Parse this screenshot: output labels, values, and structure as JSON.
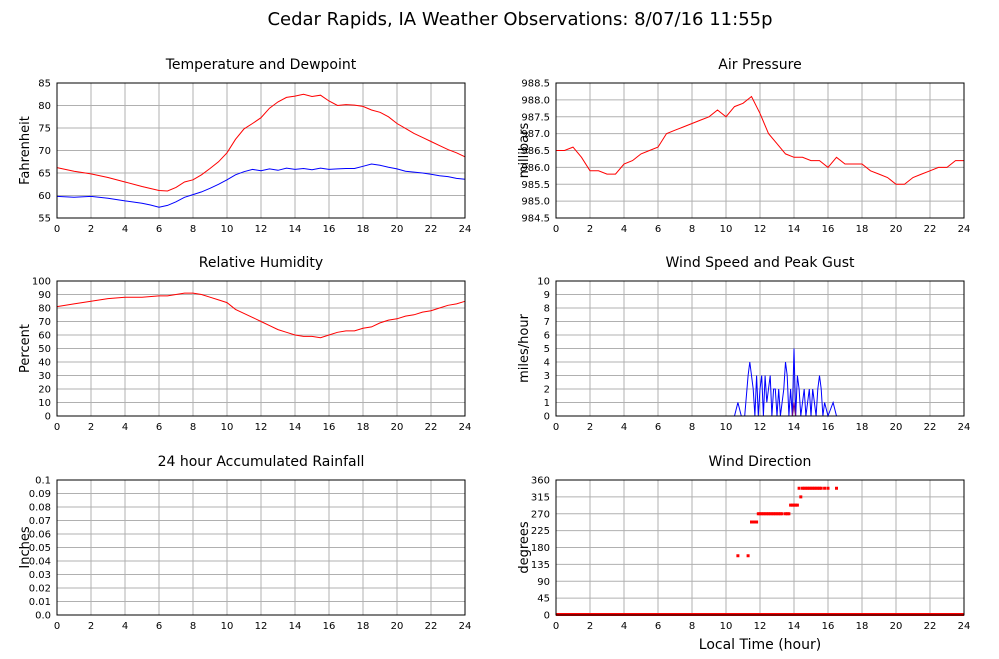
{
  "title": "Cedar Rapids, IA Weather Observations: 8/07/16 11:55p",
  "xlabel": "Local Time (hour)",
  "colors": {
    "red": "#ff0000",
    "blue": "#0000ff",
    "purple": "#800080",
    "grid": "#b0b0b0"
  },
  "chart_data": [
    {
      "id": "temp",
      "type": "line",
      "title": "Temperature and Dewpoint",
      "ylabel": "Fahrenheit",
      "xlim": [
        0,
        24
      ],
      "ylim": [
        55,
        85
      ],
      "xticks": [
        0,
        2,
        4,
        6,
        8,
        10,
        12,
        14,
        16,
        18,
        20,
        22,
        24
      ],
      "yticks": [
        "55",
        "60",
        "65",
        "70",
        "75",
        "80",
        "85"
      ],
      "series": [
        {
          "color": "#ff0000",
          "x": [
            0,
            1,
            2,
            3,
            4,
            5,
            6,
            6.5,
            7,
            7.5,
            8,
            8.5,
            9,
            9.5,
            10,
            10.5,
            11,
            11.5,
            12,
            12.5,
            13,
            13.5,
            14,
            14.5,
            15,
            15.5,
            16,
            16.5,
            17,
            17.5,
            18,
            18.5,
            19,
            19.5,
            20,
            20.5,
            21,
            21.5,
            22,
            22.5,
            23,
            23.5,
            24
          ],
          "y": [
            66.2,
            65.4,
            64.8,
            64.0,
            63.0,
            62.0,
            61.1,
            61.0,
            61.8,
            63.0,
            63.5,
            64.6,
            66.0,
            67.5,
            69.5,
            72.5,
            74.8,
            76.0,
            77.3,
            79.4,
            80.8,
            81.8,
            82.1,
            82.5,
            82.0,
            82.3,
            81.0,
            80.0,
            80.2,
            80.1,
            79.8,
            79.0,
            78.5,
            77.5,
            76.0,
            74.9,
            73.8,
            72.9,
            72.0,
            71.1,
            70.2,
            69.5,
            68.6
          ]
        },
        {
          "color": "#0000ff",
          "x": [
            0,
            1,
            2,
            3,
            4,
            5,
            5.5,
            6,
            6.5,
            7,
            7.5,
            8,
            8.5,
            9,
            9.5,
            10,
            10.5,
            11,
            11.5,
            12,
            12.5,
            13,
            13.5,
            14,
            14.5,
            15,
            15.5,
            16,
            16.5,
            17,
            17.5,
            18,
            18.5,
            19,
            19.5,
            20,
            20.5,
            21,
            21.5,
            22,
            22.5,
            23,
            23.5,
            24
          ],
          "y": [
            59.8,
            59.6,
            59.8,
            59.4,
            58.8,
            58.3,
            57.9,
            57.4,
            57.8,
            58.6,
            59.6,
            60.2,
            60.8,
            61.6,
            62.5,
            63.5,
            64.6,
            65.3,
            65.8,
            65.5,
            65.9,
            65.6,
            66.1,
            65.8,
            66.0,
            65.7,
            66.1,
            65.8,
            65.9,
            66.0,
            66.0,
            66.5,
            67.0,
            66.7,
            66.3,
            65.9,
            65.4,
            65.2,
            65.0,
            64.7,
            64.4,
            64.2,
            63.8,
            63.6
          ]
        }
      ]
    },
    {
      "id": "pressure",
      "type": "line",
      "title": "Air Pressure",
      "ylabel": "millibars",
      "xlim": [
        0,
        24
      ],
      "ylim": [
        984.5,
        988.5
      ],
      "xticks": [
        0,
        2,
        4,
        6,
        8,
        10,
        12,
        14,
        16,
        18,
        20,
        22,
        24
      ],
      "yticks": [
        "984.5",
        "985.0",
        "985.5",
        "986.0",
        "986.5",
        "987.0",
        "987.5",
        "988.0",
        "988.5"
      ],
      "series": [
        {
          "color": "#ff0000",
          "x": [
            0,
            0.5,
            1,
            1.5,
            2,
            2.5,
            3,
            3.5,
            4,
            4.5,
            5,
            5.5,
            6,
            6.5,
            7,
            7.5,
            8,
            8.5,
            9,
            9.5,
            10,
            10.5,
            11,
            11.5,
            12,
            12.5,
            13,
            13.5,
            14,
            14.5,
            15,
            15.5,
            16,
            16.5,
            17,
            17.5,
            18,
            18.5,
            19,
            19.5,
            20,
            20.5,
            21,
            21.5,
            22,
            22.5,
            23,
            23.5,
            24
          ],
          "y": [
            986.5,
            986.5,
            986.6,
            986.3,
            985.9,
            985.9,
            985.8,
            985.8,
            986.1,
            986.2,
            986.4,
            986.5,
            986.6,
            987.0,
            987.1,
            987.2,
            987.3,
            987.4,
            987.5,
            987.7,
            987.5,
            987.8,
            987.9,
            988.1,
            987.6,
            987.0,
            986.7,
            986.4,
            986.3,
            986.3,
            986.2,
            986.2,
            986.0,
            986.3,
            986.1,
            986.1,
            986.1,
            985.9,
            985.8,
            985.7,
            985.5,
            985.5,
            985.7,
            985.8,
            985.9,
            986.0,
            986.0,
            986.2,
            986.2
          ]
        }
      ]
    },
    {
      "id": "humidity",
      "type": "line",
      "title": "Relative Humidity",
      "ylabel": "Percent",
      "xlim": [
        0,
        24
      ],
      "ylim": [
        0,
        100
      ],
      "xticks": [
        0,
        2,
        4,
        6,
        8,
        10,
        12,
        14,
        16,
        18,
        20,
        22,
        24
      ],
      "yticks": [
        "0",
        "10",
        "20",
        "30",
        "40",
        "50",
        "60",
        "70",
        "80",
        "90",
        "100"
      ],
      "series": [
        {
          "color": "#ff0000",
          "x": [
            0,
            1,
            2,
            3,
            4,
            5,
            6,
            6.5,
            7,
            7.5,
            8,
            8.5,
            9,
            9.5,
            10,
            10.5,
            11,
            11.5,
            12,
            12.5,
            13,
            13.5,
            14,
            14.5,
            15,
            15.5,
            16,
            16.5,
            17,
            17.5,
            18,
            18.5,
            19,
            19.5,
            20,
            20.5,
            21,
            21.5,
            22,
            22.5,
            23,
            23.5,
            24
          ],
          "y": [
            81,
            83,
            85,
            87,
            88,
            88,
            89,
            89,
            90,
            91,
            91,
            90,
            88,
            86,
            84,
            79,
            76,
            73,
            70,
            67,
            64,
            62,
            60,
            59,
            59,
            58,
            60,
            62,
            63,
            63,
            65,
            66,
            69,
            71,
            72,
            74,
            75,
            77,
            78,
            80,
            82,
            83,
            85
          ]
        }
      ]
    },
    {
      "id": "wind",
      "type": "line",
      "title": "Wind Speed and Peak Gust",
      "ylabel": "miles/hour",
      "xlim": [
        0,
        24
      ],
      "ylim": [
        0,
        10
      ],
      "xticks": [
        0,
        2,
        4,
        6,
        8,
        10,
        12,
        14,
        16,
        18,
        20,
        22,
        24
      ],
      "yticks": [
        "0",
        "1",
        "2",
        "3",
        "4",
        "5",
        "6",
        "7",
        "8",
        "9",
        "10"
      ],
      "series": [
        {
          "color": "#0000ff",
          "x": [
            0,
            10.5,
            10.7,
            10.9,
            11.1,
            11.3,
            11.4,
            11.5,
            11.6,
            11.7,
            11.8,
            11.9,
            12.0,
            12.1,
            12.2,
            12.3,
            12.4,
            12.5,
            12.6,
            12.7,
            12.8,
            12.9,
            13.0,
            13.1,
            13.2,
            13.4,
            13.5,
            13.6,
            13.7,
            13.8,
            13.9,
            14.0,
            14.1,
            14.2,
            14.3,
            14.4,
            14.5,
            14.6,
            14.7,
            14.8,
            14.9,
            15.0,
            15.1,
            15.2,
            15.3,
            15.4,
            15.5,
            15.6,
            15.7,
            15.8,
            16.0,
            16.3,
            16.5,
            16.7,
            17.0,
            24
          ],
          "y": [
            0,
            0,
            1,
            0,
            0,
            3,
            4,
            3,
            2,
            0,
            3,
            0,
            2,
            3,
            0,
            3,
            1,
            2,
            3,
            0,
            2,
            2,
            0,
            2,
            0,
            2,
            4,
            3,
            0,
            2,
            0,
            5,
            0,
            3,
            2,
            0,
            1,
            2,
            0,
            1,
            2,
            0,
            2,
            1,
            0,
            2,
            3,
            2,
            0,
            1,
            0,
            1,
            0,
            0,
            0,
            0
          ]
        },
        {
          "color": "#800080",
          "x": [
            13.9,
            14.0,
            14.1,
            14.2
          ],
          "y": [
            0,
            1,
            0,
            0
          ]
        }
      ]
    },
    {
      "id": "rain",
      "type": "line",
      "title": "24 hour Accumulated Rainfall",
      "ylabel": "Inches",
      "xlim": [
        0,
        24
      ],
      "ylim": [
        0,
        0.1
      ],
      "xticks": [
        0,
        2,
        4,
        6,
        8,
        10,
        12,
        14,
        16,
        18,
        20,
        22,
        24
      ],
      "yticks": [
        "0.0",
        "0.01",
        "0.02",
        "0.03",
        "0.04",
        "0.05",
        "0.06",
        "0.07",
        "0.08",
        "0.09",
        "0.1"
      ],
      "series": [
        {
          "color": "#ff0000",
          "x": [
            0,
            24
          ],
          "y": [
            0,
            0
          ]
        }
      ]
    },
    {
      "id": "direction",
      "type": "scatter",
      "title": "Wind Direction",
      "ylabel": "degrees",
      "xlim": [
        0,
        24
      ],
      "ylim": [
        0,
        360
      ],
      "xticks": [
        0,
        2,
        4,
        6,
        8,
        10,
        12,
        14,
        16,
        18,
        20,
        22,
        24
      ],
      "yticks": [
        "0",
        "45",
        "90",
        "135",
        "180",
        "225",
        "270",
        "315",
        "360"
      ],
      "baseline": {
        "color": "#ff0000",
        "y": 0,
        "x": [
          0,
          24
        ]
      },
      "series": [
        {
          "color": "#ff0000",
          "x": [
            10.7,
            11.3,
            11.5,
            11.6,
            11.7,
            11.8,
            11.9,
            12.0,
            12.1,
            12.2,
            12.3,
            12.4,
            12.5,
            12.6,
            12.7,
            12.8,
            12.9,
            13.0,
            13.1,
            13.2,
            13.3,
            13.5,
            13.6,
            13.7,
            13.8,
            13.9,
            14.0,
            14.1,
            14.2,
            14.3,
            14.4,
            14.5,
            14.6,
            14.7,
            14.8,
            14.9,
            15.0,
            15.1,
            15.2,
            15.3,
            15.4,
            15.5,
            15.6,
            15.8,
            16.0,
            16.5
          ],
          "y": [
            158,
            158,
            248,
            248,
            248,
            248,
            270,
            270,
            270,
            270,
            270,
            270,
            270,
            270,
            270,
            270,
            270,
            270,
            270,
            270,
            270,
            270,
            270,
            270,
            293,
            293,
            293,
            293,
            293,
            338,
            315,
            338,
            338,
            338,
            338,
            338,
            338,
            338,
            338,
            338,
            338,
            338,
            338,
            338,
            338,
            338
          ]
        }
      ]
    }
  ]
}
